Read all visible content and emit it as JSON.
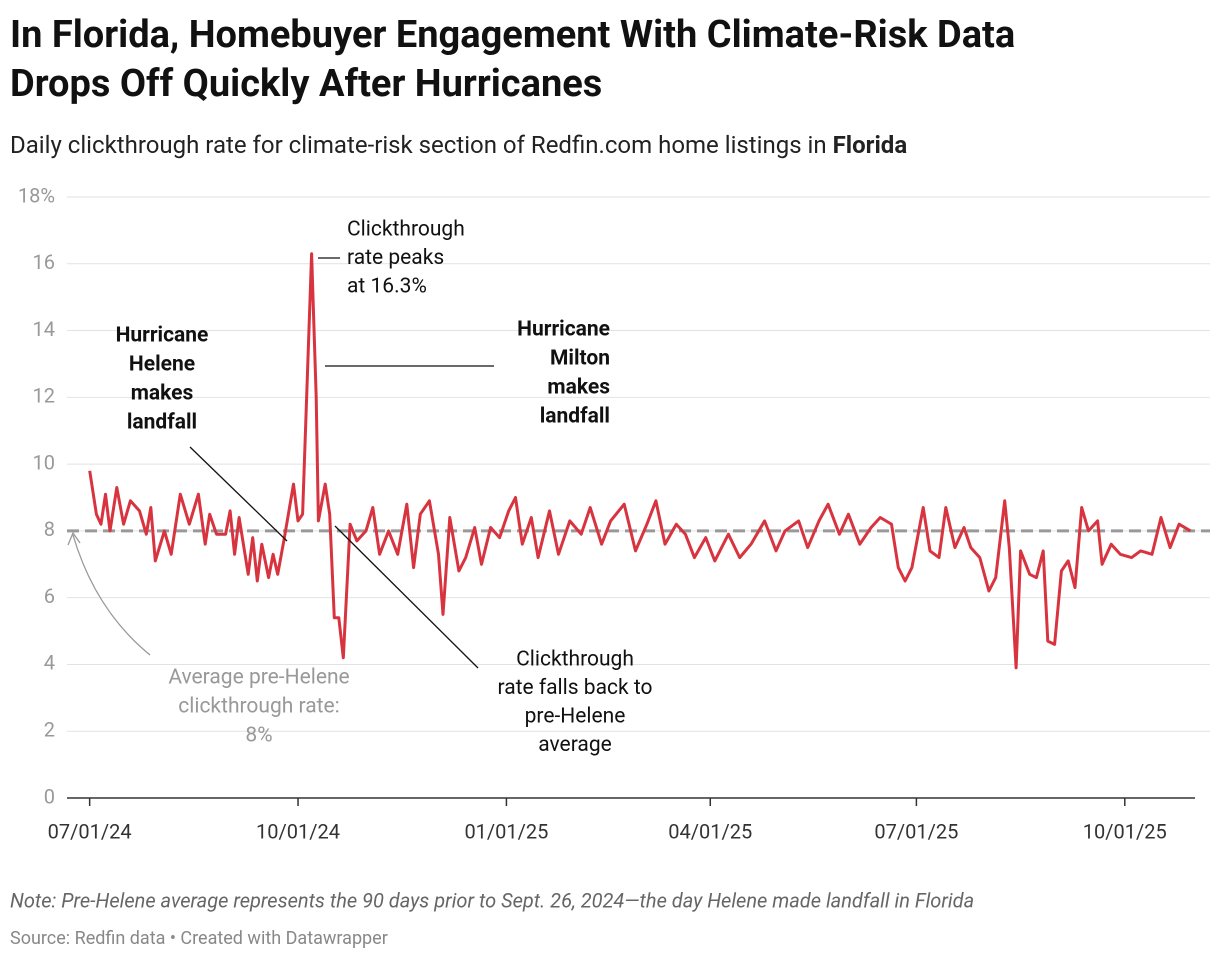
{
  "chart_data": {
    "type": "line",
    "title": [
      "In Florida, Homebuyer Engagement With Climate-Risk Data",
      "Drops Off Quickly After Hurricanes"
    ],
    "subtitle": {
      "text": "Daily clickthrough rate for climate-risk section of Redfin.com home listings in",
      "bold": "Florida"
    },
    "note": "Note: Pre-Helene average represents the 90 days prior to Sept. 26, 2024—the day Helene made landfall in Florida",
    "source": "Source: Redfin data • Created with Datawrapper",
    "x": [
      "07/01/24",
      "07/04/24",
      "07/06/24",
      "07/08/24",
      "07/10/24",
      "07/13/24",
      "07/16/24",
      "07/19/24",
      "07/23/24",
      "07/26/24",
      "07/28/24",
      "07/30/24",
      "08/03/24",
      "08/06/24",
      "08/10/24",
      "08/14/24",
      "08/18/24",
      "08/21/24",
      "08/23/24",
      "08/26/24",
      "08/30/24",
      "09/01/24",
      "09/03/24",
      "09/05/24",
      "09/09/24",
      "09/11/24",
      "09/13/24",
      "09/15/24",
      "09/18/24",
      "09/20/24",
      "09/22/24",
      "09/25/24",
      "09/29/24",
      "10/01/24",
      "10/03/24",
      "10/07/24",
      "10/09/24",
      "10/10/24",
      "10/13/24",
      "10/15/24",
      "10/17/24",
      "10/19/24",
      "10/21/24",
      "10/24/24",
      "10/27/24",
      "10/31/24",
      "11/03/24",
      "11/06/24",
      "11/10/24",
      "11/14/24",
      "11/18/24",
      "11/21/24",
      "11/24/24",
      "11/28/24",
      "12/02/24",
      "12/04/24",
      "12/07/24",
      "12/11/24",
      "12/14/24",
      "12/18/24",
      "12/21/24",
      "12/25/24",
      "12/29/24",
      "01/02/25",
      "01/05/25",
      "01/08/25",
      "01/12/25",
      "01/15/25",
      "01/20/25",
      "01/24/25",
      "01/29/25",
      "02/03/25",
      "02/07/25",
      "02/12/25",
      "02/16/25",
      "02/22/25",
      "02/27/25",
      "03/04/25",
      "03/08/25",
      "03/12/25",
      "03/17/25",
      "03/21/25",
      "03/25/25",
      "03/30/25",
      "04/03/25",
      "04/09/25",
      "04/14/25",
      "04/19/25",
      "04/25/25",
      "04/30/25",
      "05/04/25",
      "05/10/25",
      "05/14/25",
      "05/19/25",
      "05/23/25",
      "05/28/25",
      "06/01/25",
      "06/06/25",
      "06/11/25",
      "06/15/25",
      "06/20/25",
      "06/23/25",
      "06/26/25",
      "06/29/25",
      "07/04/25",
      "07/07/25",
      "07/11/25",
      "07/14/25",
      "07/18/25",
      "07/22/25",
      "07/25/25",
      "07/29/25",
      "08/02/25",
      "08/05/25",
      "08/09/25",
      "08/11/25",
      "08/14/25",
      "08/16/25",
      "08/20/25",
      "08/23/25",
      "08/26/25",
      "08/28/25",
      "08/31/25",
      "09/03/25",
      "09/06/25",
      "09/09/25",
      "09/12/25",
      "09/15/25",
      "09/19/25",
      "09/21/25",
      "09/25/25",
      "09/29/25",
      "10/04/25",
      "10/08/25",
      "10/13/25",
      "10/17/25",
      "10/21/25",
      "10/25/25",
      "10/30/25"
    ],
    "series": [
      {
        "name": "Clickthrough rate",
        "color": "#d8343f",
        "values": [
          9.8,
          8.5,
          8.2,
          9.1,
          8.0,
          9.3,
          8.2,
          8.9,
          8.6,
          7.9,
          8.7,
          7.1,
          8.0,
          7.3,
          9.1,
          8.2,
          9.1,
          7.6,
          8.5,
          7.9,
          7.9,
          8.6,
          7.3,
          8.4,
          6.7,
          7.8,
          6.5,
          7.6,
          6.6,
          7.3,
          6.7,
          7.8,
          9.4,
          8.3,
          8.5,
          16.3,
          12.0,
          8.3,
          9.4,
          8.5,
          5.4,
          5.4,
          4.2,
          8.2,
          7.7,
          8.0,
          8.7,
          7.3,
          8.0,
          7.3,
          8.8,
          6.9,
          8.5,
          8.9,
          7.3,
          5.5,
          8.4,
          6.8,
          7.2,
          8.1,
          7.0,
          8.1,
          7.8,
          8.6,
          9.0,
          7.6,
          8.4,
          7.2,
          8.6,
          7.3,
          8.3,
          7.9,
          8.7,
          7.6,
          8.3,
          8.8,
          7.4,
          8.2,
          8.9,
          7.6,
          8.2,
          7.9,
          7.2,
          7.8,
          7.1,
          7.9,
          7.2,
          7.6,
          8.3,
          7.4,
          8.0,
          8.3,
          7.5,
          8.3,
          8.8,
          7.9,
          8.5,
          7.6,
          8.1,
          8.4,
          8.2,
          6.9,
          6.5,
          6.9,
          8.7,
          7.4,
          7.2,
          8.7,
          7.5,
          8.1,
          7.5,
          7.2,
          6.2,
          6.6,
          8.9,
          7.5,
          3.9,
          7.4,
          6.7,
          6.6,
          7.4,
          4.7,
          4.6,
          6.8,
          7.1,
          6.3,
          8.7,
          8.0,
          8.3,
          7.0,
          7.6,
          7.3,
          7.2,
          7.4,
          7.3,
          8.4,
          7.5,
          8.2,
          8.0
        ]
      }
    ],
    "reference_line": {
      "value": 8,
      "color": "#999999"
    },
    "xlim": [
      "06/21/24",
      "11/01/25"
    ],
    "xticks": [
      "07/01/24",
      "10/01/24",
      "01/01/25",
      "04/01/25",
      "07/01/25",
      "10/01/25"
    ],
    "ylim": [
      0,
      18
    ],
    "yticks": [
      0,
      2,
      4,
      6,
      8,
      10,
      12,
      14,
      16,
      {
        "value": 18,
        "label": "18%"
      }
    ],
    "grid": true,
    "annotations": [
      {
        "lines": [
          "Hurricane",
          "Helene",
          "makes",
          "landfall"
        ]
      },
      {
        "lines": [
          "Hurricane",
          "Milton",
          "makes",
          "landfall"
        ]
      },
      {
        "lines": [
          "Clickthrough",
          "rate peaks",
          "at 16.3%"
        ]
      },
      {
        "lines": [
          "Clickthrough",
          "rate falls back to",
          "pre-Helene",
          "average"
        ]
      },
      {
        "lines": [
          "Average pre-Helene",
          "clickthrough rate:",
          "8%"
        ]
      }
    ]
  }
}
